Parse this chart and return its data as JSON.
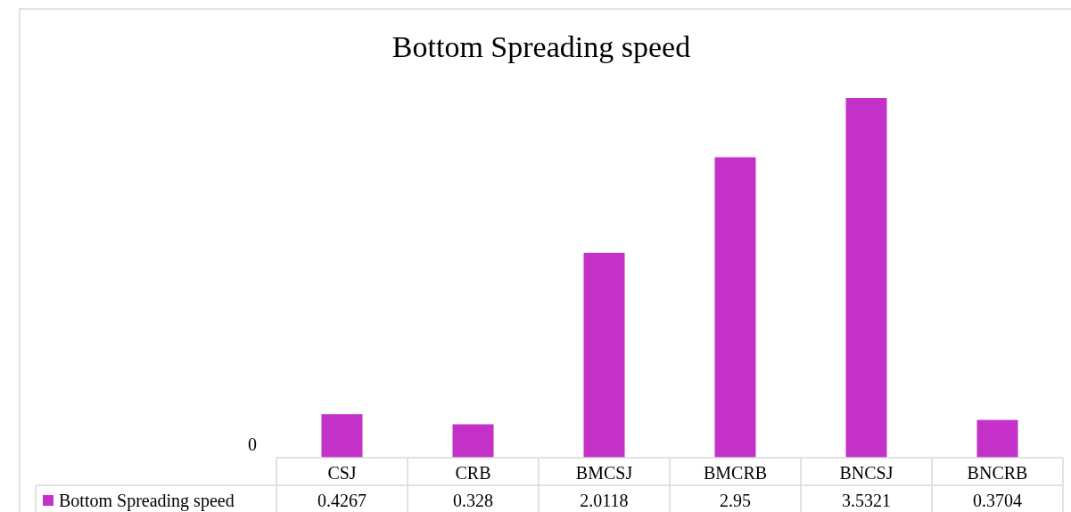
{
  "chart_data": {
    "type": "bar",
    "title": "Bottom Spreading speed",
    "categories": [
      "CSJ",
      "CRB",
      "BMCSJ",
      "BMCRB",
      "BNCSJ",
      "BNCRB"
    ],
    "series": [
      {
        "name": "Bottom Spreading speed",
        "color": "#c431c8",
        "values": [
          0.4267,
          0.328,
          2.0118,
          2.95,
          3.5321,
          0.3704
        ]
      }
    ],
    "annotations": [
      "0"
    ],
    "legend": "bottom",
    "data_labels": true
  }
}
